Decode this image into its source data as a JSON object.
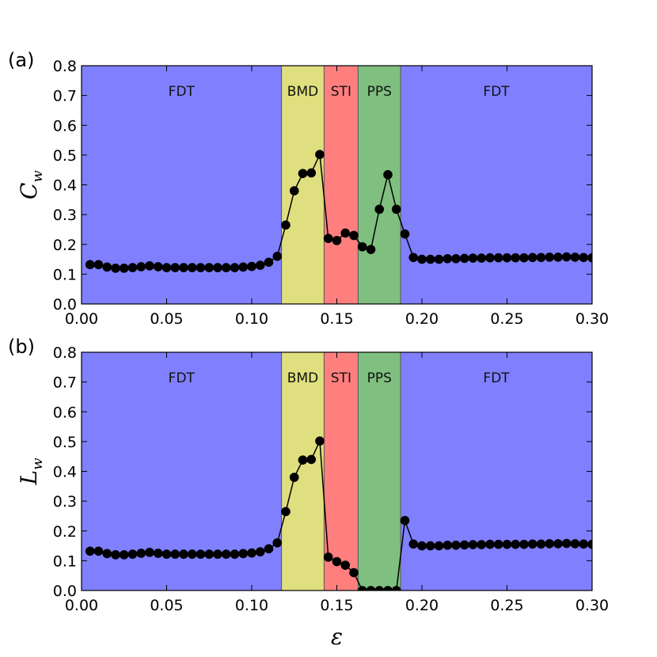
{
  "chart_data": [
    {
      "type": "line",
      "panel_label": "(a)",
      "ylabel": "C",
      "ylabel_sub": "w",
      "xlabel": "",
      "xlim": [
        0.0,
        0.3
      ],
      "ylim": [
        0.0,
        0.8
      ],
      "xticks": [
        "0.00",
        "0.05",
        "0.10",
        "0.15",
        "0.20",
        "0.25",
        "0.30"
      ],
      "yticks": [
        "0.0",
        "0.1",
        "0.2",
        "0.3",
        "0.4",
        "0.5",
        "0.6",
        "0.7",
        "0.8"
      ],
      "regions": [
        {
          "label": "FDT",
          "from": 0.0,
          "to": 0.1175,
          "color": "#8080ff"
        },
        {
          "label": "BMD",
          "from": 0.1175,
          "to": 0.1425,
          "color": "#dfdf7f"
        },
        {
          "label": "STI",
          "from": 0.1425,
          "to": 0.1625,
          "color": "#ff7f7f"
        },
        {
          "label": "PPS",
          "from": 0.1625,
          "to": 0.1875,
          "color": "#7fbf7f"
        },
        {
          "label": "FDT",
          "from": 0.1875,
          "to": 0.3,
          "color": "#8080ff"
        }
      ],
      "x": [
        0.005,
        0.01,
        0.015,
        0.02,
        0.025,
        0.03,
        0.035,
        0.04,
        0.045,
        0.05,
        0.055,
        0.06,
        0.065,
        0.07,
        0.075,
        0.08,
        0.085,
        0.09,
        0.095,
        0.1,
        0.105,
        0.11,
        0.115,
        0.12,
        0.125,
        0.13,
        0.135,
        0.14,
        0.145,
        0.15,
        0.155,
        0.16,
        0.165,
        0.17,
        0.175,
        0.18,
        0.185,
        0.19,
        0.195,
        0.2,
        0.205,
        0.21,
        0.215,
        0.22,
        0.225,
        0.23,
        0.235,
        0.24,
        0.245,
        0.25,
        0.255,
        0.26,
        0.265,
        0.27,
        0.275,
        0.28,
        0.285,
        0.29,
        0.295,
        0.3
      ],
      "values": [
        0.132,
        0.132,
        0.124,
        0.12,
        0.12,
        0.122,
        0.125,
        0.128,
        0.125,
        0.122,
        0.122,
        0.122,
        0.122,
        0.122,
        0.122,
        0.122,
        0.122,
        0.122,
        0.124,
        0.126,
        0.13,
        0.14,
        0.16,
        0.265,
        0.38,
        0.438,
        0.44,
        0.502,
        0.22,
        0.213,
        0.238,
        0.23,
        0.192,
        0.183,
        0.318,
        0.434,
        0.318,
        0.235,
        0.156,
        0.15,
        0.15,
        0.15,
        0.152,
        0.152,
        0.153,
        0.154,
        0.154,
        0.155,
        0.155,
        0.155,
        0.155,
        0.155,
        0.156,
        0.156,
        0.157,
        0.157,
        0.158,
        0.157,
        0.156,
        0.155
      ]
    },
    {
      "type": "line",
      "panel_label": "(b)",
      "ylabel": "L",
      "ylabel_sub": "w",
      "xlabel": "ε",
      "xlim": [
        0.0,
        0.3
      ],
      "ylim": [
        0.0,
        0.8
      ],
      "xticks": [
        "0.00",
        "0.05",
        "0.10",
        "0.15",
        "0.20",
        "0.25",
        "0.30"
      ],
      "yticks": [
        "0.0",
        "0.1",
        "0.2",
        "0.3",
        "0.4",
        "0.5",
        "0.6",
        "0.7",
        "0.8"
      ],
      "regions": [
        {
          "label": "FDT",
          "from": 0.0,
          "to": 0.1175,
          "color": "#8080ff"
        },
        {
          "label": "BMD",
          "from": 0.1175,
          "to": 0.1425,
          "color": "#dfdf7f"
        },
        {
          "label": "STI",
          "from": 0.1425,
          "to": 0.1625,
          "color": "#ff7f7f"
        },
        {
          "label": "PPS",
          "from": 0.1625,
          "to": 0.1875,
          "color": "#7fbf7f"
        },
        {
          "label": "FDT",
          "from": 0.1875,
          "to": 0.3,
          "color": "#8080ff"
        }
      ],
      "x": [
        0.005,
        0.01,
        0.015,
        0.02,
        0.025,
        0.03,
        0.035,
        0.04,
        0.045,
        0.05,
        0.055,
        0.06,
        0.065,
        0.07,
        0.075,
        0.08,
        0.085,
        0.09,
        0.095,
        0.1,
        0.105,
        0.11,
        0.115,
        0.12,
        0.125,
        0.13,
        0.135,
        0.14,
        0.145,
        0.15,
        0.155,
        0.16,
        0.165,
        0.17,
        0.175,
        0.18,
        0.185,
        0.19,
        0.195,
        0.2,
        0.205,
        0.21,
        0.215,
        0.22,
        0.225,
        0.23,
        0.235,
        0.24,
        0.245,
        0.25,
        0.255,
        0.26,
        0.265,
        0.27,
        0.275,
        0.28,
        0.285,
        0.29,
        0.295,
        0.3
      ],
      "values": [
        0.132,
        0.132,
        0.124,
        0.12,
        0.12,
        0.122,
        0.125,
        0.128,
        0.125,
        0.122,
        0.122,
        0.122,
        0.122,
        0.122,
        0.122,
        0.122,
        0.122,
        0.122,
        0.124,
        0.126,
        0.13,
        0.14,
        0.16,
        0.265,
        0.38,
        0.438,
        0.44,
        0.502,
        0.112,
        0.097,
        0.085,
        0.06,
        0.0,
        0.0,
        0.0,
        0.0,
        0.0,
        0.235,
        0.156,
        0.15,
        0.15,
        0.15,
        0.152,
        0.152,
        0.153,
        0.154,
        0.154,
        0.155,
        0.155,
        0.155,
        0.155,
        0.155,
        0.156,
        0.156,
        0.157,
        0.157,
        0.158,
        0.157,
        0.156,
        0.155
      ]
    }
  ]
}
